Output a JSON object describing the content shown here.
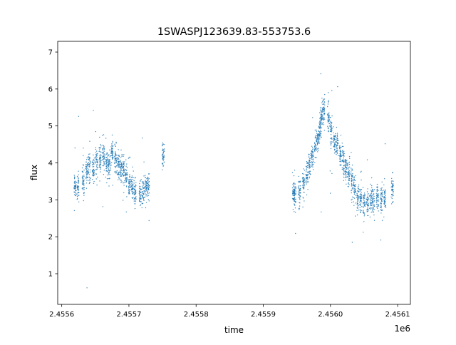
{
  "chart_data": {
    "type": "scatter",
    "title": "1SWASPJ123639.83-553753.6",
    "xlabel": "time",
    "ylabel": "flux",
    "x_offset_label": "1e6",
    "xlim": [
      2455594,
      2456119
    ],
    "ylim": [
      0.17,
      7.29
    ],
    "xticks": [
      2455600,
      2455700,
      2455800,
      2455900,
      2456000,
      2456100
    ],
    "xtick_labels": [
      "2.4556",
      "2.4557",
      "2.4558",
      "2.4559",
      "2.4560",
      "2.4561"
    ],
    "yticks": [
      1,
      2,
      3,
      4,
      5,
      6,
      7
    ],
    "ytick_labels": [
      "1",
      "2",
      "3",
      "4",
      "5",
      "6",
      "7"
    ],
    "grid": false,
    "color": "#1f77b4",
    "nightly_mean": {
      "x": [
        2455620,
        2455624,
        2455632,
        2455637,
        2455641,
        2455647,
        2455652,
        2455657,
        2455662,
        2455667,
        2455671,
        2455675,
        2455680,
        2455684,
        2455688,
        2455692,
        2455696,
        2455701,
        2455705,
        2455709,
        2455717,
        2455721,
        2455725,
        2455729,
        2455751,
        2455945,
        2455947,
        2455954,
        2455960,
        2455965,
        2455969,
        2455973,
        2455978,
        2455982,
        2455985,
        2455987,
        2455990,
        2455997,
        2456001,
        2456006,
        2456010,
        2456015,
        2456019,
        2456023,
        2456027,
        2456032,
        2456036,
        2456041,
        2456045,
        2456050,
        2456055,
        2456060,
        2456064,
        2456070,
        2456076,
        2456081,
        2456092
      ],
      "y": [
        3.4,
        3.35,
        3.5,
        3.75,
        3.9,
        3.85,
        4.0,
        4.1,
        4.2,
        4.0,
        3.9,
        4.25,
        4.1,
        3.9,
        3.85,
        3.8,
        3.6,
        3.4,
        3.35,
        3.2,
        3.15,
        3.2,
        3.3,
        3.4,
        4.2,
        3.15,
        3.2,
        3.2,
        3.45,
        3.7,
        3.9,
        4.15,
        4.4,
        4.7,
        5.0,
        5.3,
        5.4,
        5.2,
        4.8,
        4.6,
        4.5,
        4.2,
        4.0,
        3.85,
        3.7,
        3.5,
        3.3,
        3.1,
        3.0,
        3.0,
        2.95,
        3.0,
        2.95,
        3.1,
        3.0,
        3.0,
        3.3
      ]
    }
  }
}
